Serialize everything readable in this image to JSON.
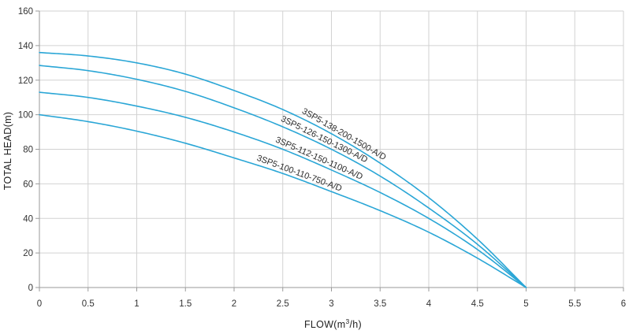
{
  "chart_data": {
    "type": "line",
    "title": "",
    "xlabel": "FLOW(m³/h)",
    "xlabel_parts": {
      "prefix": "FLOW(m",
      "sup": "3",
      "suffix": "/h)"
    },
    "ylabel": "TOTAL HEAD(m)",
    "xlim": [
      0,
      6
    ],
    "ylim": [
      0,
      160
    ],
    "xticks": [
      0,
      0.5,
      1,
      1.5,
      2,
      2.5,
      3,
      3.5,
      4,
      4.5,
      5,
      5.5,
      6
    ],
    "xtick_labels": [
      "0",
      "0.5",
      "1",
      "1.5",
      "2",
      "2.5",
      "3",
      "3.5",
      "4",
      "4.5",
      "5",
      "5.5",
      "6"
    ],
    "yticks": [
      0,
      20,
      40,
      60,
      80,
      100,
      120,
      140,
      160
    ],
    "ytick_labels": [
      "0",
      "20",
      "40",
      "60",
      "80",
      "100",
      "120",
      "140",
      "160"
    ],
    "grid": true,
    "line_color": "#2aa6d6",
    "series": [
      {
        "name": "3SP5-138-200-1500-A/D",
        "x": [
          0,
          0.5,
          1,
          1.5,
          2,
          2.5,
          3,
          3.5,
          4,
          4.5,
          5
        ],
        "values": [
          136,
          134,
          130,
          123.5,
          114,
          103,
          89,
          72,
          52,
          28,
          0
        ],
        "label_at_x": 3.1
      },
      {
        "name": "3SP5-126-150-1300-A/D",
        "x": [
          0,
          0.5,
          1,
          1.5,
          2,
          2.5,
          3,
          3.5,
          4,
          4.5,
          5
        ],
        "values": [
          128.5,
          125.5,
          120.5,
          113.5,
          104,
          93,
          80,
          64.5,
          46,
          25,
          0
        ],
        "label_at_x": 2.9
      },
      {
        "name": "3SP5-112-150-1100-A/D",
        "x": [
          0,
          0.5,
          1,
          1.5,
          2,
          2.5,
          3,
          3.5,
          4,
          4.5,
          5
        ],
        "values": [
          113,
          110,
          105,
          98.5,
          90,
          80,
          68,
          55,
          40,
          22,
          0
        ],
        "label_at_x": 2.85
      },
      {
        "name": "3SP5-100-110-750-A/D",
        "x": [
          0,
          0.5,
          1,
          1.5,
          2,
          2.5,
          3,
          3.5,
          4,
          4.5,
          5
        ],
        "values": [
          100,
          96,
          90.5,
          83.5,
          75,
          66,
          55.5,
          44.5,
          32,
          17,
          0
        ],
        "label_at_x": 2.65
      }
    ]
  }
}
